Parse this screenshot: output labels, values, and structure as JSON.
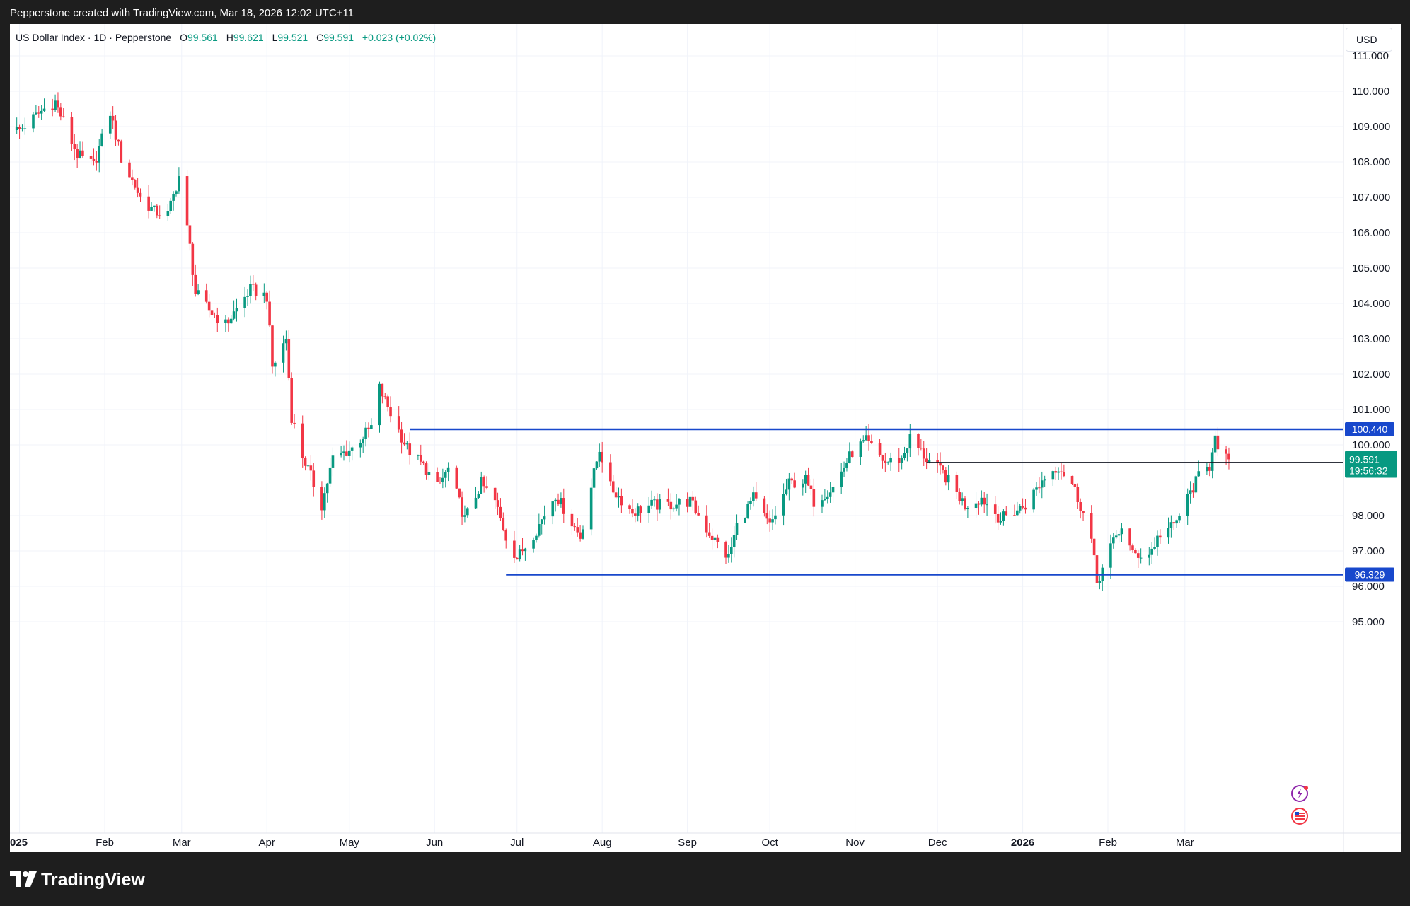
{
  "header": {
    "attribution": "Pepperstone created with TradingView.com, Mar 18, 2026 12:02 UTC+11"
  },
  "legend": {
    "symbol": "US Dollar Index · 1D · Pepperstone",
    "o_label": "O",
    "o_value": "99.561",
    "h_label": "H",
    "h_value": "99.621",
    "l_label": "L",
    "l_value": "99.521",
    "c_label": "C",
    "c_value": "99.591",
    "change": "+0.023 (+0.02%)"
  },
  "currency": "USD",
  "footer": {
    "brand": "TradingView"
  },
  "colors": {
    "up": "#089981",
    "down": "#f23645",
    "level_line": "#1848cc",
    "price_badge": "#089981",
    "dark_badge": "#131722",
    "grid": "#f0f3fa"
  },
  "icons": [
    "lightning-icon",
    "us-flag-icon"
  ],
  "chart_data": {
    "type": "candlestick",
    "ylim": [
      94.2,
      112.0
    ],
    "y_ticks": [
      "111.000",
      "110.000",
      "109.000",
      "108.000",
      "107.000",
      "106.000",
      "105.000",
      "104.000",
      "103.000",
      "102.000",
      "101.000",
      "100.000",
      "98.000",
      "97.000",
      "96.000",
      "95.000"
    ],
    "x_ticks": [
      {
        "label": "025",
        "date": "2025-01-01",
        "bold": true
      },
      {
        "label": "Feb",
        "date": "2025-02-01"
      },
      {
        "label": "Mar",
        "date": "2025-03-01"
      },
      {
        "label": "Apr",
        "date": "2025-04-01"
      },
      {
        "label": "May",
        "date": "2025-05-01"
      },
      {
        "label": "Jun",
        "date": "2025-06-01"
      },
      {
        "label": "Jul",
        "date": "2025-07-01"
      },
      {
        "label": "Aug",
        "date": "2025-08-01"
      },
      {
        "label": "Sep",
        "date": "2025-09-01"
      },
      {
        "label": "Oct",
        "date": "2025-10-01"
      },
      {
        "label": "Nov",
        "date": "2025-11-01"
      },
      {
        "label": "Dec",
        "date": "2025-12-01"
      },
      {
        "label": "2026",
        "date": "2026-01-01",
        "bold": true
      },
      {
        "label": "Feb",
        "date": "2026-02-01"
      },
      {
        "label": "Mar",
        "date": "2026-03-01"
      }
    ],
    "last_bar_date": "2026-03-17",
    "close_anchors": [
      [
        "2025-01-01",
        108.9
      ],
      [
        "2025-01-10",
        109.5
      ],
      [
        "2025-01-14",
        109.7
      ],
      [
        "2025-01-22",
        108.2
      ],
      [
        "2025-01-28",
        107.9
      ],
      [
        "2025-02-03",
        109.4
      ],
      [
        "2025-02-07",
        108.1
      ],
      [
        "2025-02-14",
        107.0
      ],
      [
        "2025-02-19",
        106.6
      ],
      [
        "2025-02-24",
        106.5
      ],
      [
        "2025-02-28",
        107.6
      ],
      [
        "2025-03-04",
        105.6
      ],
      [
        "2025-03-06",
        104.3
      ],
      [
        "2025-03-11",
        103.8
      ],
      [
        "2025-03-17",
        103.4
      ],
      [
        "2025-03-26",
        104.4
      ],
      [
        "2025-04-01",
        104.2
      ],
      [
        "2025-04-03",
        102.2
      ],
      [
        "2025-04-08",
        103.0
      ],
      [
        "2025-04-10",
        100.8
      ],
      [
        "2025-04-14",
        99.7
      ],
      [
        "2025-04-21",
        98.3
      ],
      [
        "2025-04-25",
        99.6
      ],
      [
        "2025-05-02",
        99.9
      ],
      [
        "2025-05-09",
        100.5
      ],
      [
        "2025-05-12",
        101.6
      ],
      [
        "2025-05-16",
        100.9
      ],
      [
        "2025-05-22",
        99.9
      ],
      [
        "2025-05-29",
        99.3
      ],
      [
        "2025-06-02",
        98.8
      ],
      [
        "2025-06-06",
        99.3
      ],
      [
        "2025-06-12",
        97.9
      ],
      [
        "2025-06-18",
        98.9
      ],
      [
        "2025-06-23",
        98.4
      ],
      [
        "2025-06-27",
        97.4
      ],
      [
        "2025-07-01",
        96.8
      ],
      [
        "2025-07-08",
        97.6
      ],
      [
        "2025-07-15",
        98.6
      ],
      [
        "2025-07-24",
        97.4
      ],
      [
        "2025-07-31",
        99.9
      ],
      [
        "2025-08-04",
        98.8
      ],
      [
        "2025-08-12",
        98.1
      ],
      [
        "2025-08-19",
        98.3
      ],
      [
        "2025-08-25",
        98.3
      ],
      [
        "2025-09-02",
        98.4
      ],
      [
        "2025-09-09",
        97.5
      ],
      [
        "2025-09-16",
        96.8
      ],
      [
        "2025-09-19",
        97.7
      ],
      [
        "2025-09-25",
        98.5
      ],
      [
        "2025-10-01",
        97.7
      ],
      [
        "2025-10-08",
        98.9
      ],
      [
        "2025-10-14",
        99.0
      ],
      [
        "2025-10-17",
        98.4
      ],
      [
        "2025-10-24",
        98.8
      ],
      [
        "2025-10-31",
        99.8
      ],
      [
        "2025-11-05",
        100.1
      ],
      [
        "2025-11-12",
        99.5
      ],
      [
        "2025-11-18",
        99.6
      ],
      [
        "2025-11-21",
        100.2
      ],
      [
        "2025-11-27",
        99.6
      ],
      [
        "2025-12-03",
        99.2
      ],
      [
        "2025-12-11",
        98.3
      ],
      [
        "2025-12-17",
        98.5
      ],
      [
        "2025-12-24",
        97.9
      ],
      [
        "2026-01-02",
        98.3
      ],
      [
        "2026-01-09",
        99.1
      ],
      [
        "2026-01-14",
        99.4
      ],
      [
        "2026-01-19",
        98.9
      ],
      [
        "2026-01-22",
        98.3
      ],
      [
        "2026-01-26",
        97.3
      ],
      [
        "2026-01-28",
        96.1
      ],
      [
        "2026-02-02",
        97.1
      ],
      [
        "2026-02-06",
        97.7
      ],
      [
        "2026-02-10",
        96.9
      ],
      [
        "2026-02-16",
        96.9
      ],
      [
        "2026-02-20",
        97.5
      ],
      [
        "2026-02-25",
        97.7
      ],
      [
        "2026-03-02",
        98.5
      ],
      [
        "2026-03-06",
        99.1
      ],
      [
        "2026-03-10",
        99.4
      ],
      [
        "2026-03-12",
        100.4
      ],
      [
        "2026-03-13",
        99.8
      ],
      [
        "2026-03-16",
        99.6
      ],
      [
        "2026-03-17",
        99.59
      ]
    ],
    "levels": [
      {
        "name": "resistance",
        "value": 100.44,
        "label": "100.440",
        "from": "2025-05-23",
        "color": "#1848cc"
      },
      {
        "name": "support",
        "value": 96.329,
        "label": "96.329",
        "from": "2025-06-27",
        "color": "#1848cc"
      },
      {
        "name": "reference",
        "value": 99.502,
        "label": "99.502",
        "from": "2025-11-27",
        "color": "#131722"
      }
    ],
    "last_price": {
      "value": 99.591,
      "label": "99.591",
      "countdown": "19:56:32"
    }
  }
}
